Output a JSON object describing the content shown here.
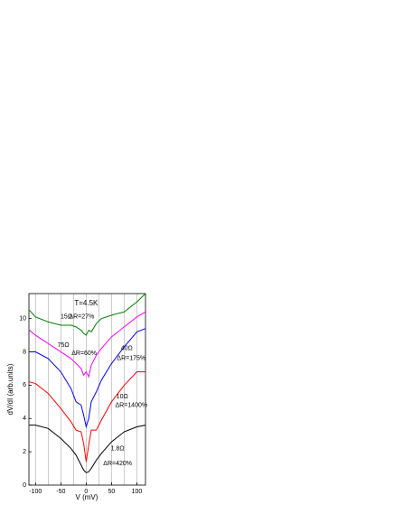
{
  "chart_data": {
    "type": "line",
    "x_label": "V (mV)",
    "y_label": "dV/dI (arb.units)",
    "x": [
      -112,
      -100,
      -75,
      -50,
      -30,
      -20,
      -10,
      -5,
      0,
      5,
      10,
      20,
      30,
      50,
      75,
      100,
      117
    ],
    "series": [
      {
        "name": "1.8Ω",
        "color": "#000000",
        "values": [
          3.6,
          3.6,
          3.4,
          2.8,
          2.2,
          1.8,
          1.2,
          0.9,
          0.75,
          0.8,
          1.0,
          1.5,
          1.9,
          2.6,
          3.2,
          3.5,
          3.6
        ]
      },
      {
        "name": "10Ω",
        "color": "#ff0000",
        "values": [
          6.2,
          6.1,
          5.5,
          4.6,
          3.8,
          3.3,
          3.2,
          2.5,
          1.4,
          2.4,
          3.3,
          3.3,
          3.9,
          5.0,
          6.0,
          6.8,
          6.8
        ]
      },
      {
        "name": "40Ω",
        "color": "#0000ff",
        "values": [
          8.0,
          8.0,
          7.6,
          6.8,
          5.8,
          5.0,
          4.8,
          4.2,
          3.5,
          4.0,
          5.0,
          5.6,
          6.3,
          7.3,
          8.3,
          9.2,
          9.4
        ]
      },
      {
        "name": "75Ω",
        "color": "#ff00ff",
        "values": [
          9.3,
          9.0,
          8.5,
          8.0,
          7.6,
          7.3,
          7.0,
          6.6,
          6.8,
          6.5,
          7.2,
          7.8,
          8.2,
          8.9,
          9.5,
          10.1,
          10.4
        ]
      },
      {
        "name": "15Ω",
        "color": "#008000",
        "values": [
          10.5,
          10.1,
          9.8,
          9.6,
          9.6,
          9.5,
          9.3,
          9.1,
          9.0,
          9.3,
          9.2,
          9.7,
          10.0,
          10.2,
          10.4,
          11.0,
          11.5
        ]
      }
    ],
    "annotations": [
      {
        "text": "T=4.5K",
        "x": 0,
        "y": 10.9
      },
      {
        "text": "15Ω",
        "x": -39,
        "y": 10.1
      },
      {
        "text": "ΔR=27%",
        "x": -9,
        "y": 10.1
      },
      {
        "text": "75Ω",
        "x": -45,
        "y": 8.4
      },
      {
        "text": "ΔR=60%",
        "x": -4,
        "y": 7.9
      },
      {
        "text": "40Ω",
        "x": 80,
        "y": 8.2
      },
      {
        "text": "ΔR=175%",
        "x": 89,
        "y": 7.6
      },
      {
        "text": "10Ω",
        "x": 71,
        "y": 5.3
      },
      {
        "text": "ΔR=1400%",
        "x": 89,
        "y": 4.8
      },
      {
        "text": "1.8Ω",
        "x": 62,
        "y": 2.2
      },
      {
        "text": "ΔR=420%",
        "x": 62,
        "y": 1.3
      }
    ],
    "xlim": [
      -113,
      117
    ],
    "ylim": [
      0,
      11.5
    ],
    "xticks": [
      -100,
      -50,
      0,
      50,
      100
    ],
    "xgrid": [
      -100,
      -75,
      -50,
      -25,
      0,
      25,
      50,
      75,
      100
    ],
    "yticks": [
      0,
      2,
      4,
      6,
      8,
      10
    ]
  }
}
